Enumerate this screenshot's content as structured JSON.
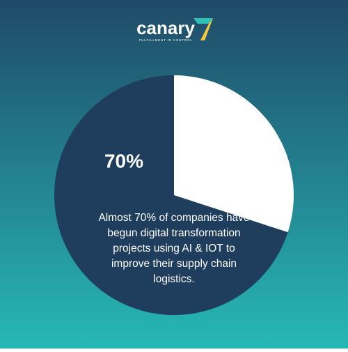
{
  "brand": {
    "name": "canary",
    "tagline": "FULFILLMENT IN CONTROL"
  },
  "chart_data": {
    "type": "pie",
    "values": [
      70,
      30
    ],
    "value_labels": [
      "70%",
      null
    ],
    "colors": [
      "#1f3d5c",
      "#ffffff"
    ],
    "annotation": [
      "Almost 70% of companies have",
      "begun digital transformation",
      "projects using AI & IOT to",
      "improve their supply chain",
      "logistics."
    ]
  }
}
